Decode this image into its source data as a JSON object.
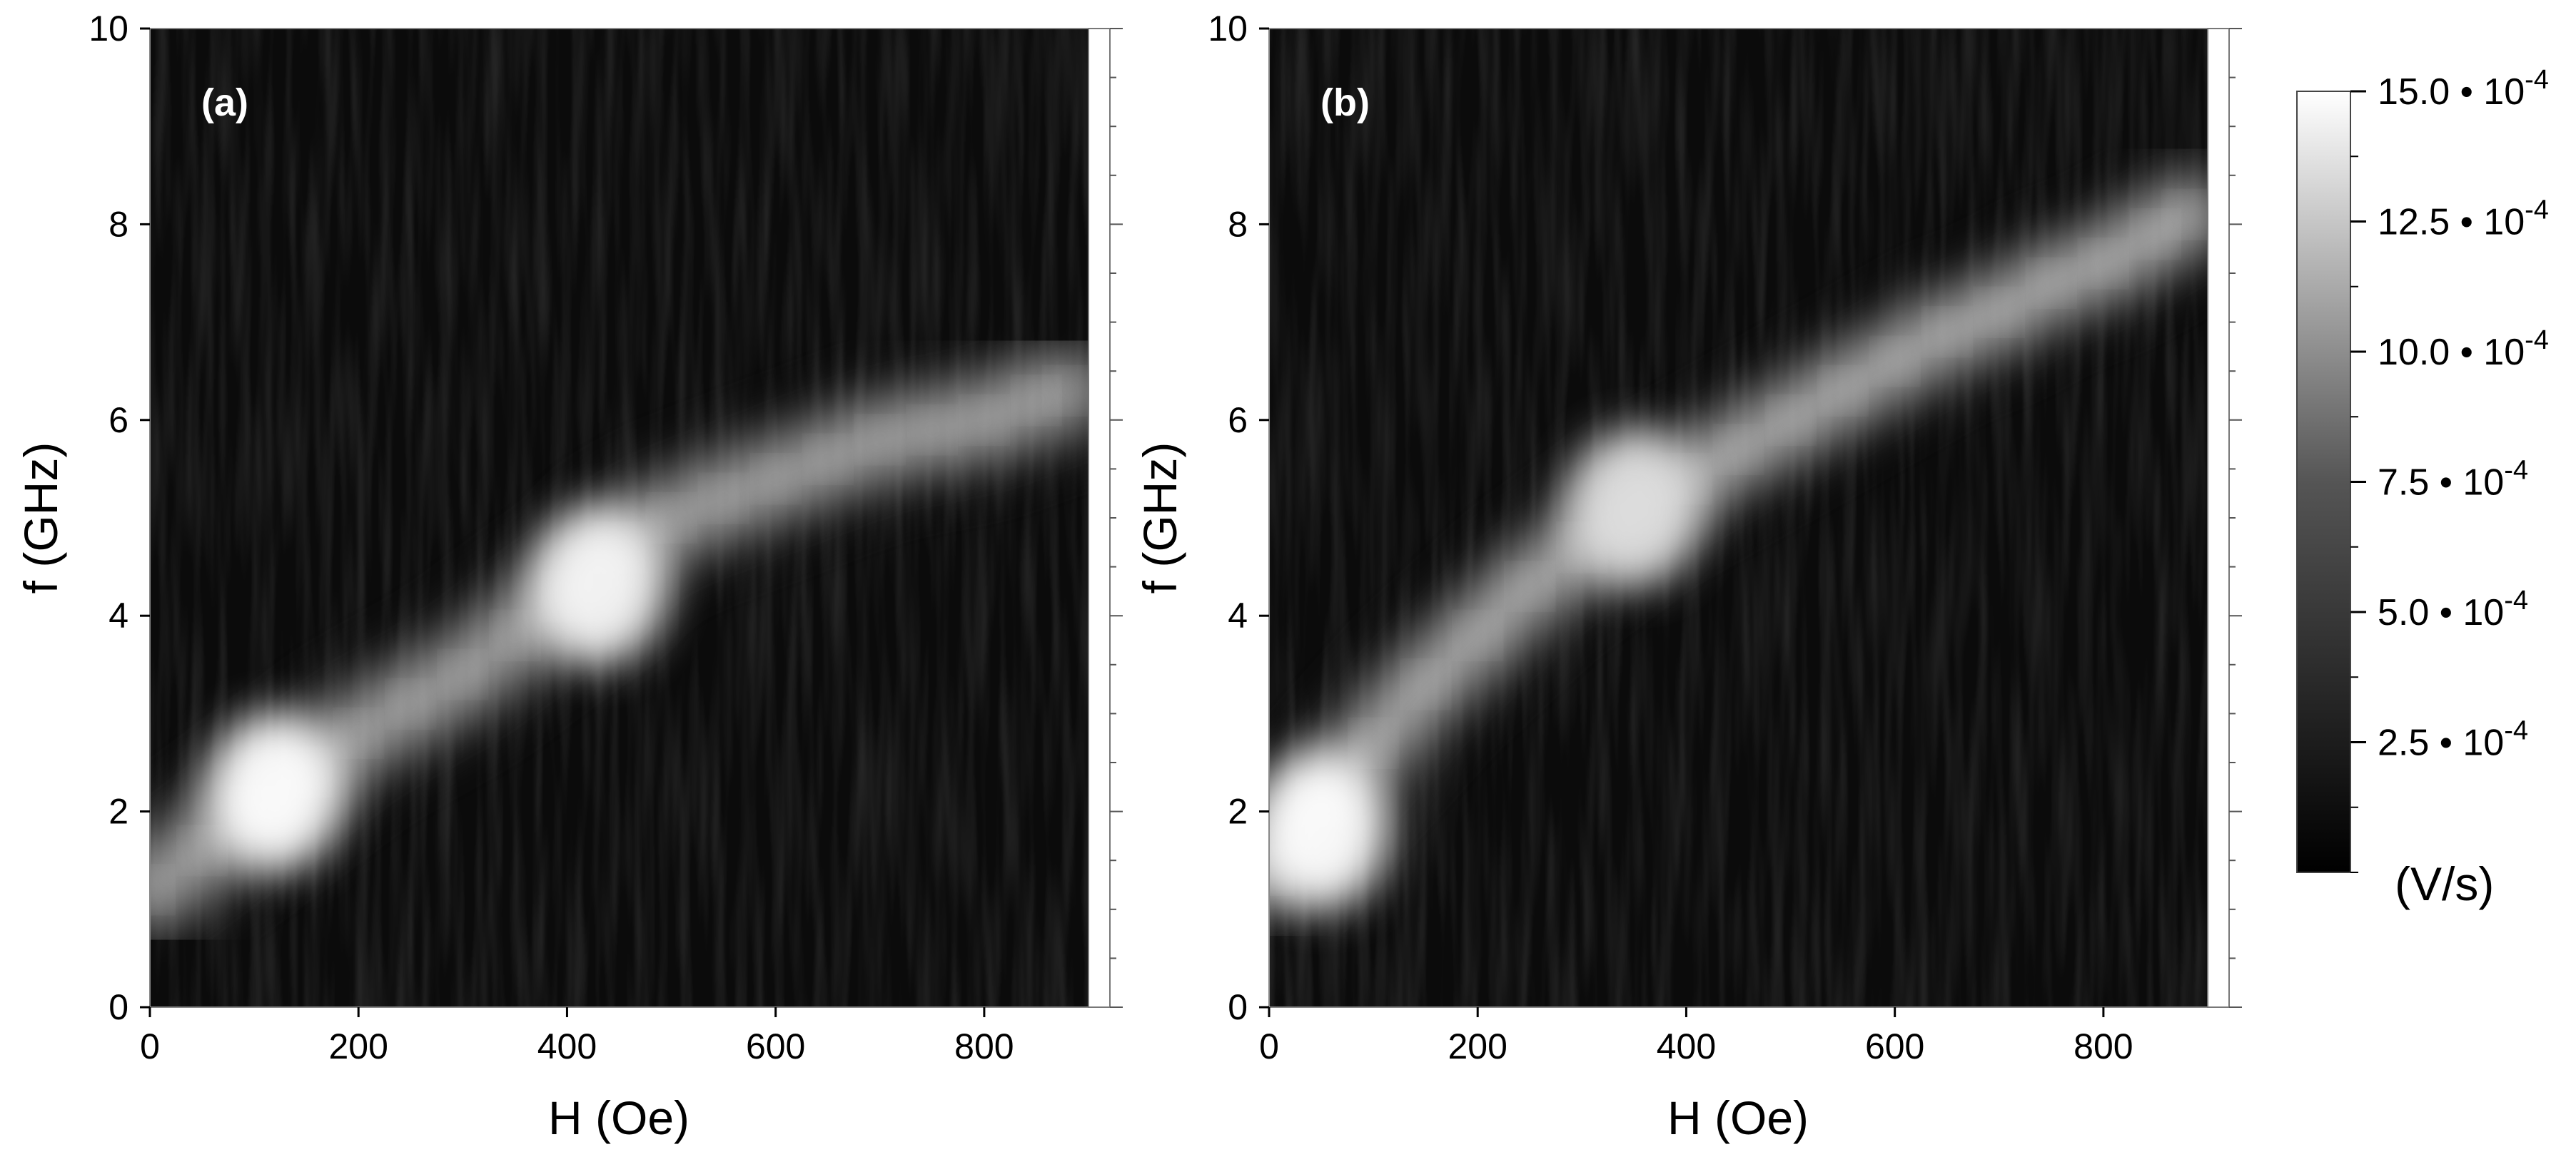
{
  "chart_data": [
    {
      "type": "heatmap",
      "panel_label": "(a)",
      "xlabel": "H (Oe)",
      "ylabel": "f (GHz)",
      "xlim": [
        0,
        900
      ],
      "ylim": [
        0,
        10
      ],
      "x_ticks": [
        0,
        200,
        400,
        600,
        800
      ],
      "y_ticks": [
        0,
        2,
        4,
        6,
        8,
        10
      ],
      "colormap": "grayscale",
      "ridge": {
        "x": [
          0,
          50,
          100,
          150,
          200,
          250,
          300,
          350,
          400,
          430,
          450,
          500,
          550,
          600,
          650,
          700,
          750,
          800,
          850,
          880
        ],
        "f": [
          1.2,
          1.6,
          2.0,
          2.4,
          2.8,
          3.1,
          3.4,
          3.8,
          4.2,
          4.4,
          4.7,
          5.0,
          5.2,
          5.4,
          5.6,
          5.8,
          5.9,
          6.0,
          6.2,
          6.3
        ]
      },
      "hotspots": [
        {
          "x": 120,
          "f": 2.2,
          "level": 15.0
        },
        {
          "x": 430,
          "f": 4.3,
          "level": 14.0
        }
      ]
    },
    {
      "type": "heatmap",
      "panel_label": "(b)",
      "xlabel": "H (Oe)",
      "ylabel": "f (GHz)",
      "xlim": [
        0,
        900
      ],
      "ylim": [
        0,
        10
      ],
      "x_ticks": [
        0,
        200,
        400,
        600,
        800
      ],
      "y_ticks": [
        0,
        2,
        4,
        6,
        8,
        10
      ],
      "colormap": "grayscale",
      "ridge": {
        "x": [
          0,
          50,
          100,
          150,
          200,
          250,
          300,
          350,
          400,
          450,
          500,
          550,
          600,
          650,
          700,
          750,
          800,
          850,
          880
        ],
        "f": [
          1.4,
          2.1,
          2.7,
          3.3,
          3.8,
          4.3,
          4.7,
          5.1,
          5.4,
          5.7,
          6.0,
          6.3,
          6.6,
          6.9,
          7.1,
          7.4,
          7.6,
          7.9,
          8.1
        ]
      },
      "hotspots": [
        {
          "x": 50,
          "f": 1.8,
          "level": 15.0
        },
        {
          "x": 350,
          "f": 5.1,
          "level": 11.0
        }
      ]
    }
  ],
  "colorbar": {
    "unit": "(V/s)",
    "ticks": [
      {
        "value": 15.0,
        "label": "15.0 • 10-4",
        "mantissa": "15.0 • 10",
        "exponent": "-4"
      },
      {
        "value": 12.5,
        "label": "12.5 • 10-4",
        "mantissa": "12.5 • 10",
        "exponent": "-4"
      },
      {
        "value": 10.0,
        "label": "10.0 • 10-4",
        "mantissa": "10.0 • 10",
        "exponent": "-4"
      },
      {
        "value": 7.5,
        "label": "7.5 • 10-4",
        "mantissa": "7.5 • 10",
        "exponent": "-4"
      },
      {
        "value": 5.0,
        "label": "5.0 • 10-4",
        "mantissa": "5.0 • 10",
        "exponent": "-4"
      },
      {
        "value": 2.5,
        "label": "2.5 • 10-4",
        "mantissa": "2.5 • 10",
        "exponent": "-4"
      }
    ],
    "range": [
      0,
      15.0
    ],
    "colors": {
      "low": "#000000",
      "high": "#ffffff"
    }
  }
}
